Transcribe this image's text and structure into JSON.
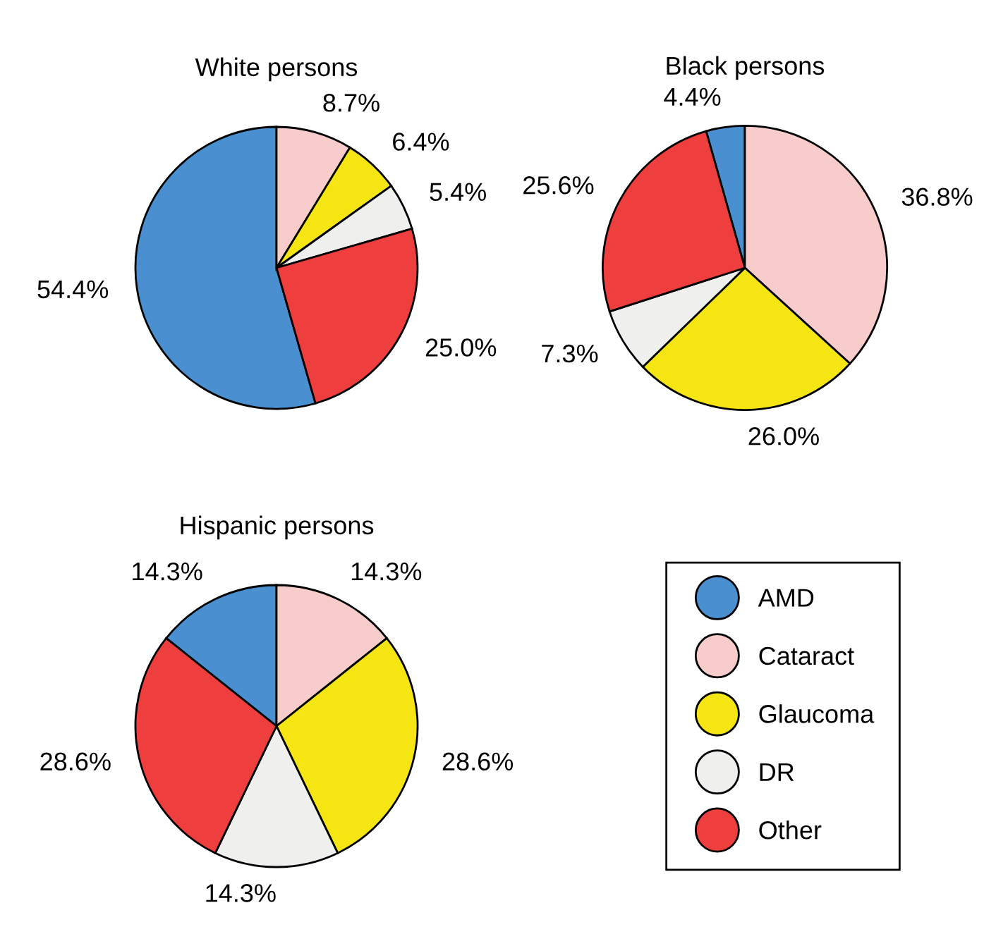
{
  "chart_data": [
    {
      "type": "pie",
      "title": "White persons",
      "categories": [
        "AMD",
        "Cataract",
        "Glaucoma",
        "DR",
        "Other"
      ],
      "values": [
        54.4,
        8.7,
        6.4,
        5.4,
        25.0
      ],
      "value_labels": [
        "54.4%",
        "8.7%",
        "6.4%",
        "5.4%",
        "25.0%"
      ],
      "colors": [
        "#4a8fd0",
        "#f9cccc",
        "#f5e613",
        "#efefed",
        "#ef3e3e"
      ],
      "legend": "right"
    },
    {
      "type": "pie",
      "title": "Black persons",
      "categories": [
        null,
        null,
        null,
        null,
        null
      ],
      "values": [
        4.4,
        36.8,
        26.0,
        7.3,
        25.6
      ],
      "value_labels": [
        "4.4%",
        "36.8%",
        "26.0%",
        "7.3%",
        "25.6%"
      ],
      "colors": [
        "#4a8fd0",
        "#f9cccc",
        "#f5e613",
        "#efefed",
        "#ef3e3e"
      ]
    },
    {
      "type": "pie",
      "title": "Hispanic persons",
      "categories": [
        null,
        null,
        null,
        null,
        null
      ],
      "values": [
        14.3,
        14.3,
        28.6,
        14.3,
        28.6
      ],
      "value_labels": [
        "14.3%",
        "14.3%",
        "28.6%",
        "14.3%",
        "28.6%"
      ],
      "colors": [
        "#4a8fd0",
        "#f9cccc",
        "#f5e613",
        "#efefed",
        "#ef3e3e"
      ]
    }
  ]
}
